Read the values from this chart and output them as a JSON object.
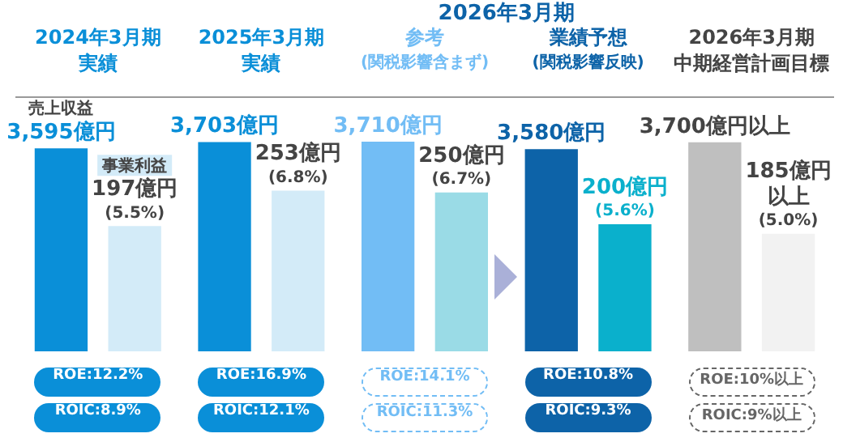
{
  "chart_data": {
    "type": "bar",
    "categories": [
      "2024年3月期実績",
      "2025年3月期実績",
      "参考\n(関税影響含まず)",
      "業績予想\n(関税影響反映)",
      "2026年3月期中期経営計画目標"
    ],
    "series": [
      {
        "name": "売上収益",
        "colors": [
          "#0a8fd8",
          "#0a8fd8",
          "#72bdf5",
          "#0d63a8",
          "#bfbfbf"
        ],
        "values": [
          3595,
          3703,
          3710,
          3580,
          3700
        ],
        "value_labels": [
          "3,595億円",
          "3,703億円",
          "3,710億円",
          "3,580億円",
          "3,700億円以上"
        ]
      },
      {
        "name": "事業利益",
        "axis": "y2",
        "colors": [
          "#d3ebf8",
          "#d3ebf8",
          "#9adbe6",
          "#0ab0cc",
          "#f2f2f2"
        ],
        "values": [
          197,
          253,
          250,
          200,
          185
        ],
        "value_labels": [
          "197億円\n(5.5%)",
          "253億円\n(6.8%)",
          "250億円\n(6.7%)",
          "200億円\n(5.6%)",
          "185億円以上\n(5.0%)"
        ]
      }
    ],
    "tick_labels": "x",
    "grid": false,
    "legend": false,
    "annotations": [
      "2026年3月期",
      "ROE:12.2%",
      "ROIC:8.9%",
      "ROE:16.9%",
      "ROIC:12.1%",
      "ROE:14.1%",
      "ROIC:11.3%",
      "ROE:10.8%",
      "ROIC:9.3%",
      "ROE:10%以上",
      "ROIC:9%以上"
    ]
  }
}
